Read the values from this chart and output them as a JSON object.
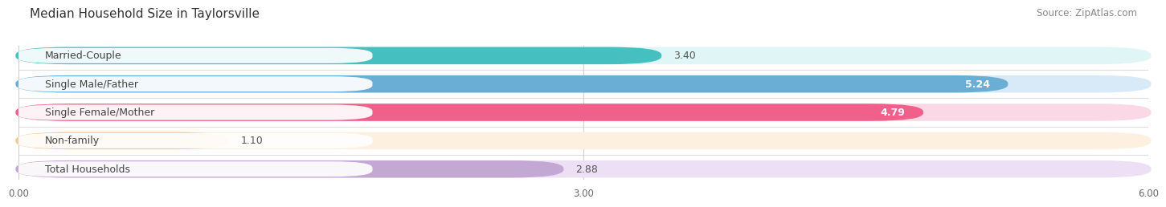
{
  "title": "Median Household Size in Taylorsville",
  "source": "Source: ZipAtlas.com",
  "categories": [
    "Married-Couple",
    "Single Male/Father",
    "Single Female/Mother",
    "Non-family",
    "Total Households"
  ],
  "values": [
    3.4,
    5.24,
    4.79,
    1.1,
    2.88
  ],
  "bar_colors": [
    "#45BFBF",
    "#6AAED6",
    "#F0608A",
    "#F5C99A",
    "#C4A8D4"
  ],
  "bar_bg_colors": [
    "#E0F5F5",
    "#D8EAF7",
    "#FAD8E5",
    "#FDF0E0",
    "#EDE0F5"
  ],
  "value_colors": [
    "#555555",
    "#ffffff",
    "#ffffff",
    "#555555",
    "#555555"
  ],
  "xlim": [
    0,
    6.0
  ],
  "xtick_labels": [
    "0.00",
    "3.00",
    "6.00"
  ],
  "background_color": "#ffffff",
  "bar_height": 0.58,
  "label_fontsize": 9,
  "value_fontsize": 9,
  "title_fontsize": 11,
  "source_fontsize": 8.5
}
